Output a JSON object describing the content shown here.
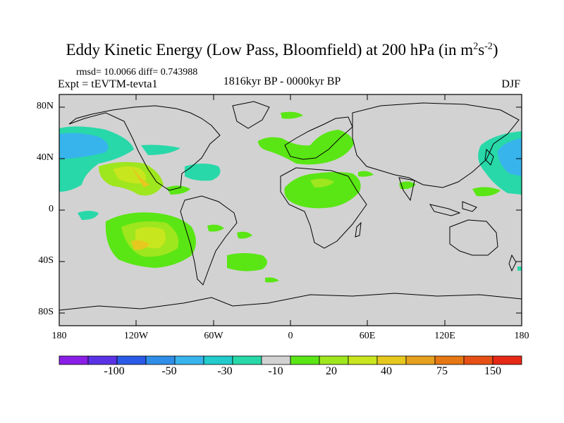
{
  "title_main": "Eddy Kinetic Energy (Low Pass, Bloomfield) at 200 hPa (in m",
  "title_sup1": "2",
  "title_mid": "s",
  "title_sup2": "-2",
  "title_end": ")",
  "stats": "rmsd= 10.0066 diff= 0.743988",
  "expt": "Expt = tEVTM-tevta1",
  "period": "1816kyr BP - 0000kyr BP",
  "season": "DJF",
  "lat_labels": [
    "80N",
    "40N",
    "0",
    "40S",
    "80S"
  ],
  "lon_labels": [
    "180",
    "120W",
    "60W",
    "0",
    "60E",
    "120E",
    "180"
  ],
  "colorbar": {
    "colors": [
      "#8a1ee6",
      "#5a32e6",
      "#2a5ae6",
      "#2e8ee8",
      "#38b4ec",
      "#22cccc",
      "#28d8a8",
      "#d2d2d2",
      "#5ae614",
      "#9ee61e",
      "#c8e61e",
      "#e6c81e",
      "#e6a01e",
      "#e67814",
      "#e65014",
      "#e62814"
    ],
    "labels": [
      "-100",
      "-50",
      "-30",
      "-10",
      "20",
      "40",
      "75",
      "150"
    ]
  },
  "map": {
    "background": "#d2d2d2",
    "coast_color": "#000000"
  }
}
